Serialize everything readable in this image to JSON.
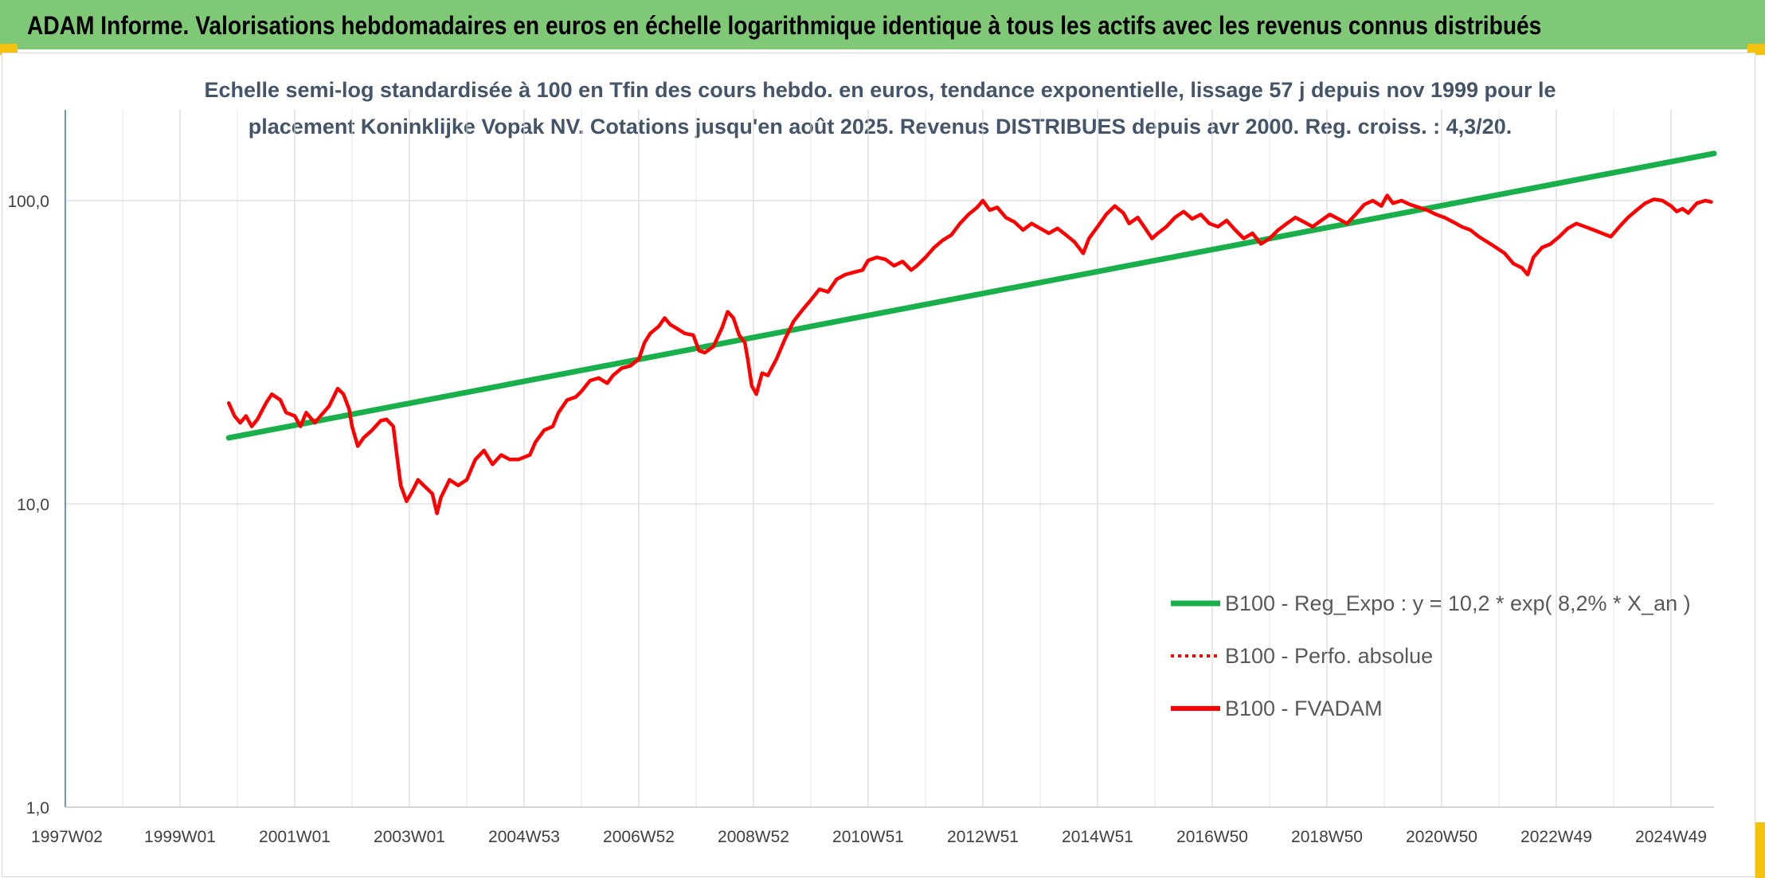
{
  "header": {
    "title": "ADAM Informe. Valorisations hebdomadaires en euros en échelle logarithmique identique à tous les actifs avec les revenus connus distribués"
  },
  "colors": {
    "header_bg": "#7ec876",
    "regression": "#19b04b",
    "fvadam": "#ff0000",
    "perfo": "#ff0000",
    "subtitle": "#44546a"
  },
  "chart_data": {
    "type": "line",
    "title_line1": "Echelle semi-log standardisée à 100 en Tfin des cours hebdo. en euros, tendance exponentielle, lissage 57 j depuis nov 1999 pour le",
    "title_line2": "placement Koninklijke Vopak NV. Cotations jusqu'en août 2025. Revenus DISTRIBUES depuis avr 2000. Reg. croiss. : 4,3/20.",
    "y_scale": "log",
    "ylim": [
      1,
      180
    ],
    "y_ticks": [
      {
        "value": 1,
        "label": "1,0"
      },
      {
        "value": 10,
        "label": "10,0"
      },
      {
        "value": 100,
        "label": "100,0"
      }
    ],
    "x_start": 1997.0,
    "x_end": 2025.75,
    "x_ticks": [
      {
        "year": 1997.0,
        "label": "1997W02"
      },
      {
        "year": 1999.0,
        "label": "1999W01"
      },
      {
        "year": 2001.0,
        "label": "2001W01"
      },
      {
        "year": 2003.0,
        "label": "2003W01"
      },
      {
        "year": 2005.0,
        "label": "2004W53"
      },
      {
        "year": 2007.0,
        "label": "2006W52"
      },
      {
        "year": 2009.0,
        "label": "2008W52"
      },
      {
        "year": 2011.0,
        "label": "2010W51"
      },
      {
        "year": 2013.0,
        "label": "2012W51"
      },
      {
        "year": 2015.0,
        "label": "2014W51"
      },
      {
        "year": 2017.0,
        "label": "2016W50"
      },
      {
        "year": 2019.0,
        "label": "2018W50"
      },
      {
        "year": 2021.0,
        "label": "2020W50"
      },
      {
        "year": 2023.0,
        "label": "2022W49"
      },
      {
        "year": 2025.0,
        "label": "2024W49"
      }
    ],
    "grid": true,
    "legend_position": "lower-right",
    "legend": [
      {
        "key": "reg",
        "label": "B100 - Reg_Expo : y = 10,2 * exp( 8,2% *  X_an )",
        "style": "solid-thick"
      },
      {
        "key": "perfo",
        "label": "B100 - Perfo. absolue",
        "style": "dotted"
      },
      {
        "key": "fvadam",
        "label": "B100 - FVADAM",
        "style": "solid"
      }
    ],
    "series": [
      {
        "key": "reg",
        "points": [
          [
            1999.85,
            16.5
          ],
          [
            2025.75,
            143
          ]
        ]
      },
      {
        "key": "fvadam",
        "points": [
          [
            1999.85,
            21.5
          ],
          [
            1999.95,
            19.5
          ],
          [
            2000.05,
            18.5
          ],
          [
            2000.15,
            19.5
          ],
          [
            2000.25,
            18.0
          ],
          [
            2000.35,
            19.0
          ],
          [
            2000.5,
            21.5
          ],
          [
            2000.6,
            23.0
          ],
          [
            2000.75,
            22.0
          ],
          [
            2000.85,
            20.0
          ],
          [
            2001.0,
            19.5
          ],
          [
            2001.1,
            18.0
          ],
          [
            2001.2,
            20.0
          ],
          [
            2001.35,
            18.5
          ],
          [
            2001.45,
            19.5
          ],
          [
            2001.6,
            21.0
          ],
          [
            2001.75,
            24.0
          ],
          [
            2001.85,
            23.0
          ],
          [
            2001.95,
            20.5
          ],
          [
            2002.0,
            18.0
          ],
          [
            2002.1,
            15.5
          ],
          [
            2002.2,
            16.5
          ],
          [
            2002.35,
            17.5
          ],
          [
            2002.5,
            18.8
          ],
          [
            2002.6,
            19.0
          ],
          [
            2002.72,
            18.0
          ],
          [
            2002.78,
            14.5
          ],
          [
            2002.85,
            11.5
          ],
          [
            2002.95,
            10.2
          ],
          [
            2003.05,
            11.0
          ],
          [
            2003.15,
            12.0
          ],
          [
            2003.25,
            11.5
          ],
          [
            2003.4,
            10.8
          ],
          [
            2003.48,
            9.3
          ],
          [
            2003.55,
            10.5
          ],
          [
            2003.7,
            12.0
          ],
          [
            2003.85,
            11.5
          ],
          [
            2004.0,
            12.0
          ],
          [
            2004.15,
            14.0
          ],
          [
            2004.3,
            15.0
          ],
          [
            2004.45,
            13.5
          ],
          [
            2004.6,
            14.5
          ],
          [
            2004.75,
            14.0
          ],
          [
            2004.9,
            14.0
          ],
          [
            2005.1,
            14.5
          ],
          [
            2005.2,
            16.0
          ],
          [
            2005.35,
            17.5
          ],
          [
            2005.5,
            18.0
          ],
          [
            2005.6,
            20.0
          ],
          [
            2005.75,
            22.0
          ],
          [
            2005.9,
            22.5
          ],
          [
            2006.0,
            23.5
          ],
          [
            2006.15,
            25.5
          ],
          [
            2006.3,
            26.0
          ],
          [
            2006.45,
            25.0
          ],
          [
            2006.55,
            26.5
          ],
          [
            2006.7,
            28.0
          ],
          [
            2006.85,
            28.5
          ],
          [
            2007.0,
            30.0
          ],
          [
            2007.1,
            34.0
          ],
          [
            2007.2,
            36.5
          ],
          [
            2007.35,
            38.5
          ],
          [
            2007.45,
            41.0
          ],
          [
            2007.55,
            39.0
          ],
          [
            2007.65,
            38.0
          ],
          [
            2007.8,
            36.5
          ],
          [
            2007.95,
            36.0
          ],
          [
            2008.05,
            32.0
          ],
          [
            2008.15,
            31.5
          ],
          [
            2008.3,
            33.0
          ],
          [
            2008.45,
            38.0
          ],
          [
            2008.55,
            43.0
          ],
          [
            2008.65,
            41.0
          ],
          [
            2008.75,
            36.0
          ],
          [
            2008.85,
            34.0
          ],
          [
            2008.9,
            30.0
          ],
          [
            2008.97,
            24.5
          ],
          [
            2009.05,
            23.0
          ],
          [
            2009.15,
            27.0
          ],
          [
            2009.25,
            26.5
          ],
          [
            2009.4,
            30.0
          ],
          [
            2009.55,
            35.0
          ],
          [
            2009.7,
            40.0
          ],
          [
            2009.85,
            43.5
          ],
          [
            2010.0,
            47.0
          ],
          [
            2010.15,
            51.0
          ],
          [
            2010.3,
            50.0
          ],
          [
            2010.45,
            55.0
          ],
          [
            2010.6,
            57.0
          ],
          [
            2010.75,
            58.0
          ],
          [
            2010.9,
            59.0
          ],
          [
            2011.0,
            63.5
          ],
          [
            2011.15,
            65.0
          ],
          [
            2011.3,
            64.0
          ],
          [
            2011.45,
            61.0
          ],
          [
            2011.6,
            63.0
          ],
          [
            2011.75,
            59.0
          ],
          [
            2011.85,
            61.0
          ],
          [
            2012.0,
            65.0
          ],
          [
            2012.15,
            70.0
          ],
          [
            2012.3,
            74.0
          ],
          [
            2012.45,
            77.0
          ],
          [
            2012.6,
            84.0
          ],
          [
            2012.75,
            90.0
          ],
          [
            2012.9,
            95.0
          ],
          [
            2013.0,
            100.0
          ],
          [
            2013.12,
            93.0
          ],
          [
            2013.25,
            95.0
          ],
          [
            2013.4,
            88.0
          ],
          [
            2013.55,
            85.0
          ],
          [
            2013.7,
            80.0
          ],
          [
            2013.85,
            84.0
          ],
          [
            2014.0,
            81.0
          ],
          [
            2014.15,
            78.0
          ],
          [
            2014.3,
            81.0
          ],
          [
            2014.45,
            77.0
          ],
          [
            2014.6,
            73.0
          ],
          [
            2014.75,
            67.0
          ],
          [
            2014.85,
            75.0
          ],
          [
            2015.0,
            82.0
          ],
          [
            2015.15,
            90.0
          ],
          [
            2015.3,
            96.0
          ],
          [
            2015.45,
            91.0
          ],
          [
            2015.55,
            84.0
          ],
          [
            2015.7,
            88.0
          ],
          [
            2015.85,
            80.0
          ],
          [
            2015.95,
            75.0
          ],
          [
            2016.05,
            78.0
          ],
          [
            2016.2,
            82.0
          ],
          [
            2016.35,
            88.0
          ],
          [
            2016.5,
            92.0
          ],
          [
            2016.65,
            87.0
          ],
          [
            2016.8,
            90.0
          ],
          [
            2016.95,
            84.0
          ],
          [
            2017.1,
            82.0
          ],
          [
            2017.25,
            86.0
          ],
          [
            2017.4,
            80.0
          ],
          [
            2017.55,
            75.0
          ],
          [
            2017.7,
            78.0
          ],
          [
            2017.85,
            72.0
          ],
          [
            2018.0,
            75.0
          ],
          [
            2018.15,
            80.0
          ],
          [
            2018.3,
            84.0
          ],
          [
            2018.45,
            88.0
          ],
          [
            2018.6,
            85.0
          ],
          [
            2018.75,
            82.0
          ],
          [
            2018.9,
            86.0
          ],
          [
            2019.05,
            90.0
          ],
          [
            2019.2,
            87.0
          ],
          [
            2019.35,
            84.0
          ],
          [
            2019.5,
            90.0
          ],
          [
            2019.65,
            97.0
          ],
          [
            2019.8,
            100.0
          ],
          [
            2019.95,
            96.0
          ],
          [
            2020.05,
            104.0
          ],
          [
            2020.15,
            98.0
          ],
          [
            2020.3,
            100.0
          ],
          [
            2020.45,
            97.0
          ],
          [
            2020.6,
            95.0
          ],
          [
            2020.75,
            93.0
          ],
          [
            2020.9,
            90.0
          ],
          [
            2021.05,
            88.0
          ],
          [
            2021.2,
            85.0
          ],
          [
            2021.35,
            82.0
          ],
          [
            2021.5,
            80.0
          ],
          [
            2021.65,
            76.0
          ],
          [
            2021.8,
            73.0
          ],
          [
            2021.95,
            70.0
          ],
          [
            2022.1,
            67.0
          ],
          [
            2022.25,
            62.0
          ],
          [
            2022.4,
            60.0
          ],
          [
            2022.5,
            57.0
          ],
          [
            2022.6,
            65.0
          ],
          [
            2022.75,
            70.0
          ],
          [
            2022.9,
            72.0
          ],
          [
            2023.05,
            76.0
          ],
          [
            2023.2,
            81.0
          ],
          [
            2023.35,
            84.0
          ],
          [
            2023.5,
            82.0
          ],
          [
            2023.65,
            80.0
          ],
          [
            2023.8,
            78.0
          ],
          [
            2023.95,
            76.0
          ],
          [
            2024.1,
            82.0
          ],
          [
            2024.25,
            88.0
          ],
          [
            2024.4,
            93.0
          ],
          [
            2024.55,
            98.0
          ],
          [
            2024.7,
            101.0
          ],
          [
            2024.85,
            100.0
          ],
          [
            2025.0,
            96.0
          ],
          [
            2025.1,
            92.0
          ],
          [
            2025.2,
            94.0
          ],
          [
            2025.3,
            91.0
          ],
          [
            2025.45,
            98.0
          ],
          [
            2025.6,
            100.0
          ],
          [
            2025.7,
            99.0
          ]
        ]
      }
    ]
  }
}
